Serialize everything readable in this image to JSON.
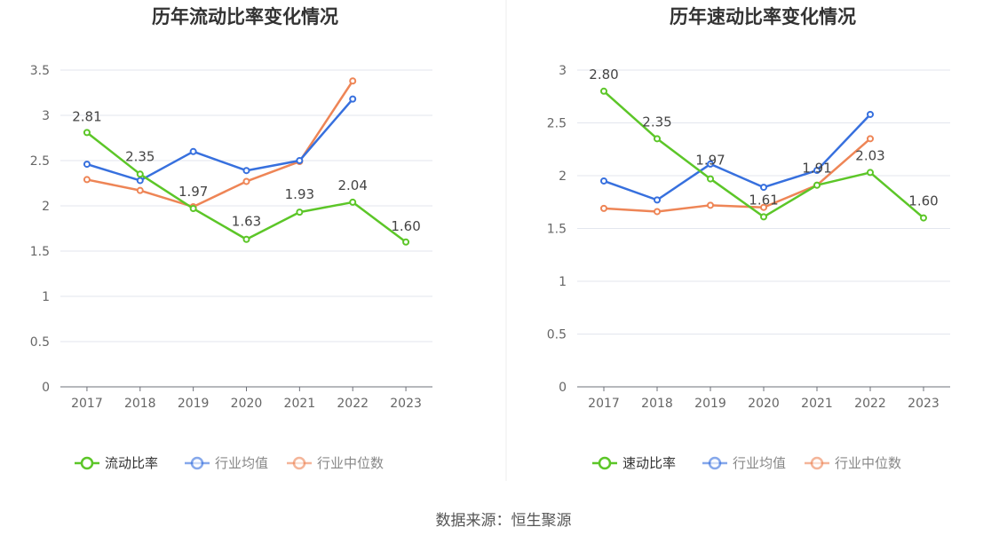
{
  "source": "数据来源：恒生聚源",
  "chart_data": [
    {
      "type": "line",
      "title": "历年流动比率变化情况",
      "x": [
        "2017",
        "2018",
        "2019",
        "2020",
        "2021",
        "2022",
        "2023"
      ],
      "ylim": [
        0,
        3.5
      ],
      "yticks": [
        "0",
        "0.5",
        "1",
        "1.5",
        "2",
        "2.5",
        "3",
        "3.5"
      ],
      "grid": true,
      "legend_position": "bottom",
      "series": [
        {
          "name": "流动比率",
          "color": "#5cc628",
          "values": [
            2.81,
            2.35,
            1.97,
            1.63,
            1.93,
            2.04,
            1.6
          ],
          "labels": [
            "2.81",
            "2.35",
            "1.97",
            "1.63",
            "1.93",
            "2.04",
            "1.60"
          ]
        },
        {
          "name": "行业均值",
          "color": "#3770de",
          "values": [
            2.46,
            2.28,
            2.6,
            2.39,
            2.5,
            3.18,
            null
          ]
        },
        {
          "name": "行业中位数",
          "color": "#ee8556",
          "values": [
            2.29,
            2.17,
            1.99,
            2.27,
            2.49,
            3.38,
            null
          ]
        }
      ]
    },
    {
      "type": "line",
      "title": "历年速动比率变化情况",
      "x": [
        "2017",
        "2018",
        "2019",
        "2020",
        "2021",
        "2022",
        "2023"
      ],
      "ylim": [
        0,
        3
      ],
      "yticks": [
        "0",
        "0.5",
        "1",
        "1.5",
        "2",
        "2.5",
        "3"
      ],
      "grid": true,
      "legend_position": "bottom",
      "series": [
        {
          "name": "速动比率",
          "color": "#5cc628",
          "values": [
            2.8,
            2.35,
            1.97,
            1.61,
            1.91,
            2.03,
            1.6
          ],
          "labels": [
            "2.80",
            "2.35",
            "1.97",
            "1.61",
            "1.91",
            "2.03",
            "1.60"
          ]
        },
        {
          "name": "行业均值",
          "color": "#3770de",
          "values": [
            1.95,
            1.77,
            2.11,
            1.89,
            2.05,
            2.58,
            null
          ]
        },
        {
          "name": "行业中位数",
          "color": "#ee8556",
          "values": [
            1.69,
            1.66,
            1.72,
            1.7,
            1.91,
            2.35,
            null
          ]
        }
      ]
    }
  ]
}
